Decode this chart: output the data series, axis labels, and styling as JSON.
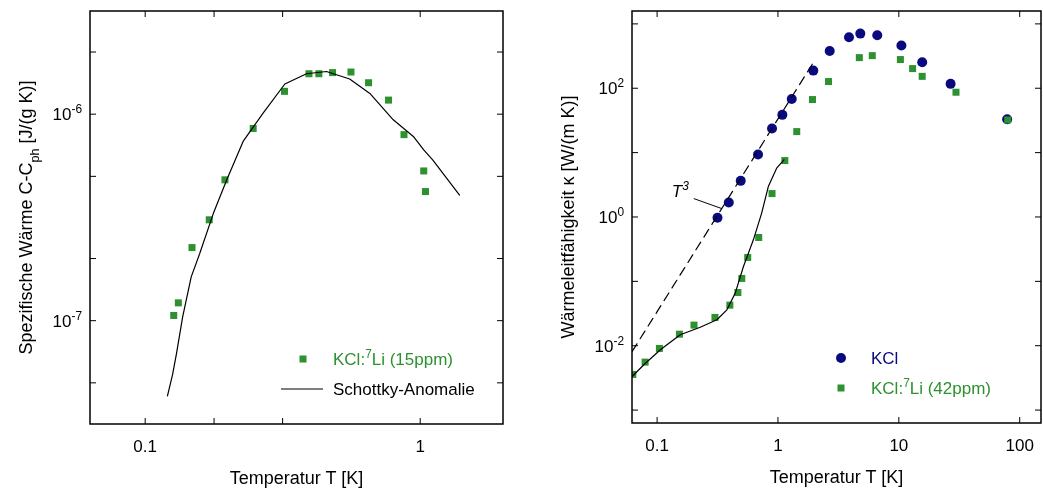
{
  "chart_data": [
    {
      "type": "scatter",
      "xlabel": "Temperatur T [K]",
      "ylabel": "Spezifische Wärme C-C$_{ph}$ [J/(g K)]",
      "log": "xy",
      "xlim": [
        0.063,
        2
      ],
      "ylim": [
        3.16e-08,
        3.16e-06
      ],
      "xticks": [
        0.1,
        {
          "value": 0.178,
          "label": null
        },
        {
          "value": 0.316,
          "label": null
        },
        1
      ],
      "yticks": [
        {
          "value": 5e-08,
          "label": null
        },
        {
          "value": 1e-07,
          "label": "10$^{-7}$"
        },
        {
          "value": 2e-07,
          "label": null
        },
        {
          "value": 5e-07,
          "label": null
        },
        {
          "value": 1e-06,
          "label": "10$^{-6}$"
        },
        {
          "value": 2e-06,
          "label": null
        }
      ],
      "legend": "bottom right",
      "series": [
        {
          "name": "KCl:$^{7}$Li (15ppm)",
          "marker": "square",
          "color": "#2e9130",
          "x": [
            0.127,
            0.132,
            0.148,
            0.171,
            0.195,
            0.247,
            0.321,
            0.394,
            0.428,
            0.48,
            0.56,
            0.649,
            0.767,
            0.873,
            1.03,
            1.045
          ],
          "values": [
            1.06e-07,
            1.22e-07,
            2.26e-07,
            3.08e-07,
            4.81e-07,
            8.53e-07,
            1.29e-06,
            1.57e-06,
            1.57e-06,
            1.59e-06,
            1.6e-06,
            1.42e-06,
            1.17e-06,
            7.96e-07,
            5.31e-07,
            4.22e-07
          ]
        },
        {
          "name": "Schottky-Anomalie",
          "type": "line",
          "marker": "none",
          "line_style": "solid",
          "color": "#000000",
          "x": [
            0.1205,
            0.1257,
            0.13,
            0.1368,
            0.147,
            0.158,
            0.177,
            0.198,
            0.227,
            0.268,
            0.322,
            0.386,
            0.456,
            0.554,
            0.656,
            0.798,
            0.944,
            1.03,
            1.11,
            1.39
          ],
          "values": [
            4.32e-08,
            5.46e-08,
            6.95e-08,
            1.04e-07,
            1.63e-07,
            2.12e-07,
            3.31e-07,
            4.81e-07,
            7.38e-07,
            1.01e-06,
            1.4e-06,
            1.57e-06,
            1.61e-06,
            1.48e-06,
            1.26e-06,
            9.39e-07,
            7.8e-07,
            6.71e-07,
            6.01e-07,
            4.06e-07
          ]
        }
      ]
    },
    {
      "type": "scatter",
      "xlabel": "Temperatur T [K]",
      "ylabel": "Wärmeleitfähigkeit κ [W/(m K)]",
      "log": "xy",
      "xlim": [
        0.062,
        150
      ],
      "ylim": [
        0.00063,
        1585
      ],
      "xticks": [
        0.1,
        1,
        10,
        100
      ],
      "yticks": [
        {
          "value": 0.001,
          "label": null
        },
        {
          "value": 0.01,
          "label": "10$^{-2}$"
        },
        {
          "value": 0.1,
          "label": null
        },
        {
          "value": 1,
          "label": "10$^{0}$"
        },
        {
          "value": 10,
          "label": null
        },
        {
          "value": 100,
          "label": "10$^{2}$"
        },
        {
          "value": 1000,
          "label": null
        }
      ],
      "legend": "bottom right",
      "annotations": [
        {
          "text": "T$^{3}$",
          "x": 0.343,
          "y": 1.35
        }
      ],
      "series": [
        {
          "name": "KCl",
          "marker": "circle",
          "color": "#0a0a80",
          "x": [
            0.316,
            0.392,
            0.492,
            0.684,
            0.893,
            1.087,
            1.3,
            1.96,
            2.68,
            3.87,
            4.8,
            6.63,
            10.5,
            15.6,
            26.8,
            78.7
          ],
          "values": [
            0.97,
            1.68,
            3.64,
            9.33,
            23.7,
            38.6,
            68.2,
            188,
            380,
            619,
            706,
            665,
            460,
            253,
            117,
            33
          ]
        },
        {
          "name": "KCl:$^{7}$Li (42ppm)",
          "marker": "square",
          "color": "#2e9130",
          "x": [
            0.063,
            0.0796,
            0.1045,
            0.153,
            0.202,
            0.301,
            0.4,
            0.466,
            0.502,
            0.562,
            0.693,
            0.893,
            1.14,
            1.43,
            1.93,
            2.62,
            4.71,
            6.03,
            10.3,
            13,
            15.6,
            29.7,
            79.6
          ],
          "values": [
            0.00358,
            0.00556,
            0.00907,
            0.0151,
            0.0209,
            0.0275,
            0.0427,
            0.0671,
            0.111,
            0.235,
            0.48,
            2.31,
            7.53,
            21.2,
            66.7,
            127,
            299,
            321,
            279,
            202,
            153,
            86.7,
            32.2
          ]
        },
        {
          "type": "line",
          "marker": "none",
          "line_style": "solid",
          "color": "#000000",
          "x": [
            0.0622,
            0.0777,
            0.1064,
            0.1555,
            0.2275,
            0.3126,
            0.378,
            0.443,
            0.518,
            0.626,
            0.733,
            0.832,
            0.975,
            1.12
          ],
          "values": [
            0.00333,
            0.00506,
            0.00865,
            0.0148,
            0.0194,
            0.0253,
            0.0361,
            0.0656,
            0.17,
            0.442,
            1.15,
            2.97,
            5.72,
            7.71
          ]
        },
        {
          "type": "line",
          "marker": "none",
          "line_style": "dashed",
          "color": "#000000",
          "x": [
            0.0622,
            1.93
          ],
          "values": [
            0.00815,
            239
          ]
        }
      ]
    }
  ]
}
